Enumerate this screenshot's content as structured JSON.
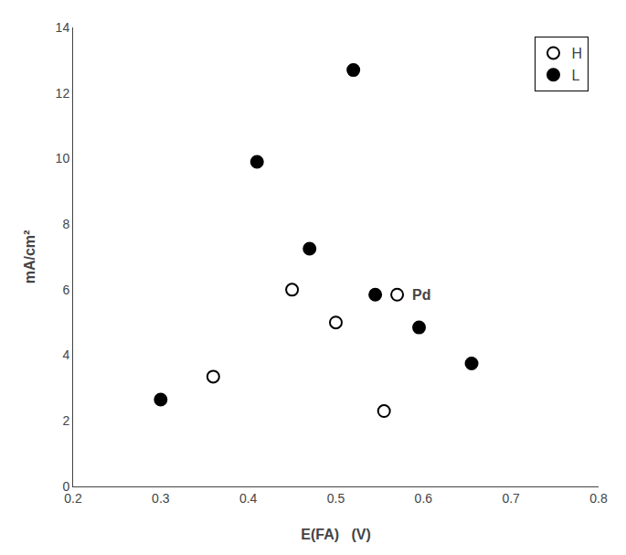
{
  "chart_data": {
    "type": "scatter",
    "xlabel": "E(FA)   (V)",
    "ylabel": "mA/cm²",
    "xlim": [
      0.2,
      0.8
    ],
    "ylim": [
      0,
      14
    ],
    "xticks": [
      0.2,
      0.3,
      0.4,
      0.5,
      0.6,
      0.7,
      0.8
    ],
    "yticks": [
      0,
      2,
      4,
      6,
      8,
      10,
      12,
      14
    ],
    "series": [
      {
        "name": "H",
        "color": "black",
        "marker": "circle-open",
        "x": [
          0.36,
          0.45,
          0.5,
          0.555,
          0.57
        ],
        "values": [
          3.35,
          6.0,
          5.0,
          2.3,
          5.85
        ]
      },
      {
        "name": "L",
        "color": "black",
        "marker": "circle",
        "x": [
          0.3,
          0.41,
          0.47,
          0.52,
          0.545,
          0.595,
          0.655
        ],
        "values": [
          2.65,
          9.9,
          7.25,
          12.7,
          5.85,
          4.85,
          3.75
        ]
      }
    ],
    "annotations": [
      {
        "text": "Pd",
        "x": 0.585,
        "y": 5.85
      }
    ],
    "legend": "upper right",
    "grid": false
  }
}
